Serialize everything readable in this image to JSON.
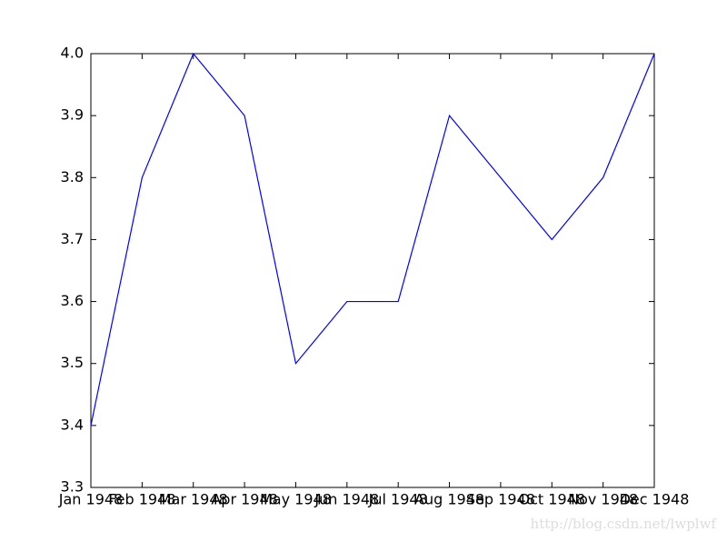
{
  "chart_data": {
    "type": "line",
    "categories": [
      "Jan 1948",
      "Feb 1948",
      "Mar 1948",
      "Apr 1948",
      "May 1948",
      "Jun 1948",
      "Jul 1948",
      "Aug 1948",
      "Sep 1948",
      "Oct 1948",
      "Nov 1948",
      "Dec 1948"
    ],
    "values": [
      3.4,
      3.8,
      4.0,
      3.9,
      3.5,
      3.6,
      3.6,
      3.9,
      3.8,
      3.7,
      3.8,
      4.0
    ],
    "color": "#0000ff",
    "ylim": [
      3.3,
      4.0
    ],
    "yticks": [
      3.3,
      3.4,
      3.5,
      3.6,
      3.7,
      3.8,
      3.9,
      {
        "value": 4.0,
        "label": "4.0"
      }
    ],
    "grid": false,
    "watermark": "http://blog.csdn.net/lwplwf"
  }
}
